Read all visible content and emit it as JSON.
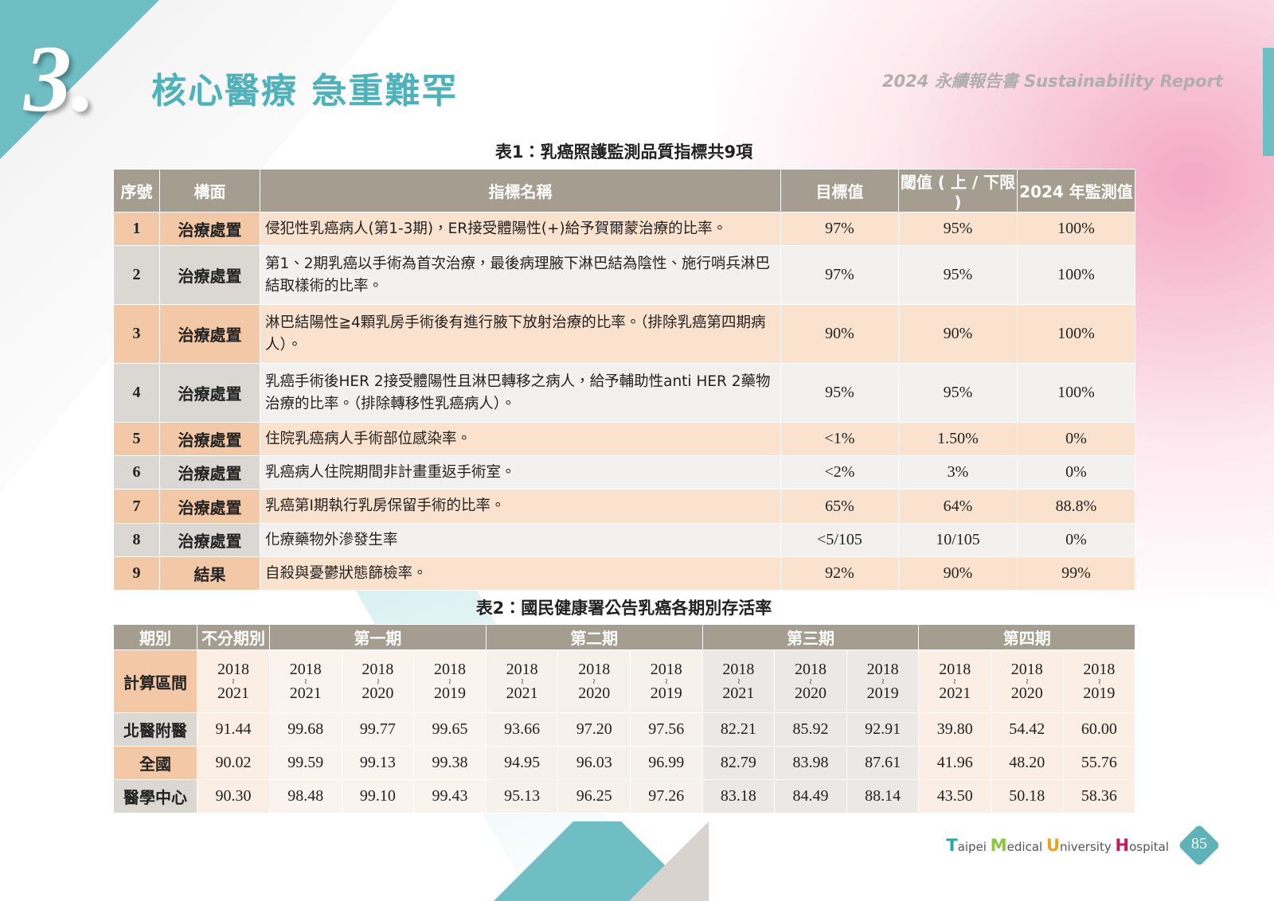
{
  "header": {
    "number": "3.",
    "title": "核心醫療 急重難罕",
    "report": "2024 永續報告書 Sustainability Report"
  },
  "table1": {
    "caption": "表1：乳癌照護監測品質指標共9項",
    "columns": [
      "序號",
      "構面",
      "指標名稱",
      "目標值",
      "閾值 ( 上 / 下限 )",
      "2024 年監測值"
    ],
    "rows": [
      [
        "1",
        "治療處置",
        "侵犯性乳癌病人(第1-3期)，ER接受體陽性(+)給予賀爾蒙治療的比率。",
        "97%",
        "95%",
        "100%"
      ],
      [
        "2",
        "治療處置",
        "第1、2期乳癌以手術為首次治療，最後病理腋下淋巴結為陰性、施行哨兵淋巴結取樣術的比率。",
        "97%",
        "95%",
        "100%"
      ],
      [
        "3",
        "治療處置",
        "淋巴結陽性≧4顆乳房手術後有進行腋下放射治療的比率。（排除乳癌第四期病人）。",
        "90%",
        "90%",
        "100%"
      ],
      [
        "4",
        "治療處置",
        "乳癌手術後HER 2接受體陽性且淋巴轉移之病人，給予輔助性anti HER 2藥物治療的比率。（排除轉移性乳癌病人）。",
        "95%",
        "95%",
        "100%"
      ],
      [
        "5",
        "治療處置",
        "住院乳癌病人手術部位感染率。",
        "<1%",
        "1.50%",
        "0%"
      ],
      [
        "6",
        "治療處置",
        "乳癌病人住院期間非計畫重返手術室。",
        "<2%",
        "3%",
        "0%"
      ],
      [
        "7",
        "治療處置",
        "乳癌第I期執行乳房保留手術的比率。",
        "65%",
        "64%",
        "88.8%"
      ],
      [
        "8",
        "治療處置",
        "化療藥物外滲發生率",
        "<5/105",
        "10/105",
        "0%"
      ],
      [
        "9",
        "結果",
        "自殺與憂鬱狀態篩檢率。",
        "92%",
        "90%",
        "99%"
      ]
    ]
  },
  "table2": {
    "caption": "表2：國民健康署公告乳癌各期別存活率",
    "header": [
      "期別",
      "不分期別",
      "第一期",
      "第二期",
      "第三期",
      "第四期"
    ],
    "period_label": "計算區間",
    "periods": [
      [
        "2018",
        "~",
        "2021"
      ],
      [
        "2018",
        "~",
        "2021"
      ],
      [
        "2018",
        "~",
        "2020"
      ],
      [
        "2018",
        "~",
        "2019"
      ],
      [
        "2018",
        "~",
        "2021"
      ],
      [
        "2018",
        "~",
        "2020"
      ],
      [
        "2018",
        "~",
        "2019"
      ],
      [
        "2018",
        "~",
        "2021"
      ],
      [
        "2018",
        "~",
        "2020"
      ],
      [
        "2018",
        "~",
        "2019"
      ],
      [
        "2018",
        "~",
        "2021"
      ],
      [
        "2018",
        "~",
        "2020"
      ],
      [
        "2018",
        "~",
        "2019"
      ]
    ],
    "rows": [
      {
        "label": "北醫附醫",
        "values": [
          "91.44",
          "99.68",
          "99.77",
          "99.65",
          "93.66",
          "97.20",
          "97.56",
          "82.21",
          "85.92",
          "92.91",
          "39.80",
          "54.42",
          "60.00"
        ]
      },
      {
        "label": "全國",
        "values": [
          "90.02",
          "99.59",
          "99.13",
          "99.38",
          "94.95",
          "96.03",
          "96.99",
          "82.79",
          "83.98",
          "87.61",
          "41.96",
          "48.20",
          "55.76"
        ]
      },
      {
        "label": "醫學中心",
        "values": [
          "90.30",
          "98.48",
          "99.10",
          "99.43",
          "95.13",
          "96.25",
          "97.26",
          "83.18",
          "84.49",
          "88.14",
          "43.50",
          "50.18",
          "58.36"
        ]
      }
    ]
  },
  "footer": {
    "hospital": [
      "Taipei",
      "Medical",
      "University",
      "Hospital"
    ],
    "page": "85"
  }
}
